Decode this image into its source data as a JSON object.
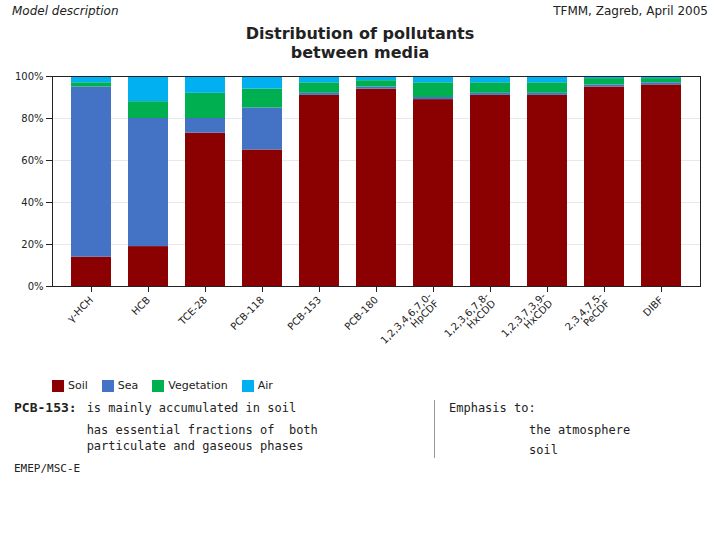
{
  "chart_data": {
    "type": "bar",
    "title": "Distribution of pollutants\nbetween media",
    "annotations": [
      "Model description",
      "TFMM, Zagreb, April 2005",
      "PCB-153:",
      "is mainly accumulated in soil",
      "has essential fractions of  both\nparticulate and gaseous phases",
      "Emphasis to:",
      "the atmosphere",
      "soil",
      "EMEP/MSC-E"
    ],
    "categories": [
      "γ-HCH",
      "HCB",
      "TCE-28",
      "PCB-118",
      "PCB-153",
      "PCB-180",
      "1,2,3,4,6,7,0-\nHpCDF",
      "1,2,3,6,7,8-\nHxCDD",
      "1,2,3,7,3,9-\nHxCDD",
      "2,3,4,7,5-\nPeCDF",
      "DIBF"
    ],
    "series": [
      {
        "name": "Soil",
        "color": "#8b0000",
        "values": [
          14,
          19,
          73,
          65,
          91,
          94,
          89,
          91,
          91,
          95,
          96
        ]
      },
      {
        "name": "Sea",
        "color": "#4472c4",
        "values": [
          81,
          61,
          7,
          20,
          1,
          1,
          1,
          1,
          1,
          1,
          1
        ]
      },
      {
        "name": "Vegetation",
        "color": "#00b050",
        "values": [
          2,
          8,
          12,
          9,
          5,
          3,
          7,
          5,
          5,
          3,
          2
        ]
      },
      {
        "name": "Air",
        "color": "#00b0f0",
        "values": [
          3,
          12,
          8,
          6,
          3,
          2,
          3,
          3,
          3,
          1,
          1
        ]
      }
    ],
    "stacked": true,
    "ylim": [
      0,
      100
    ],
    "yticks": [
      {
        "value": 0,
        "label": "0%"
      },
      {
        "value": 20,
        "label": "20%"
      },
      {
        "value": 40,
        "label": "40%"
      },
      {
        "value": 60,
        "label": "60%"
      },
      {
        "value": 80,
        "label": "80%"
      },
      {
        "value": 100,
        "label": "100%"
      }
    ],
    "grid": true,
    "legend": "lower left"
  }
}
